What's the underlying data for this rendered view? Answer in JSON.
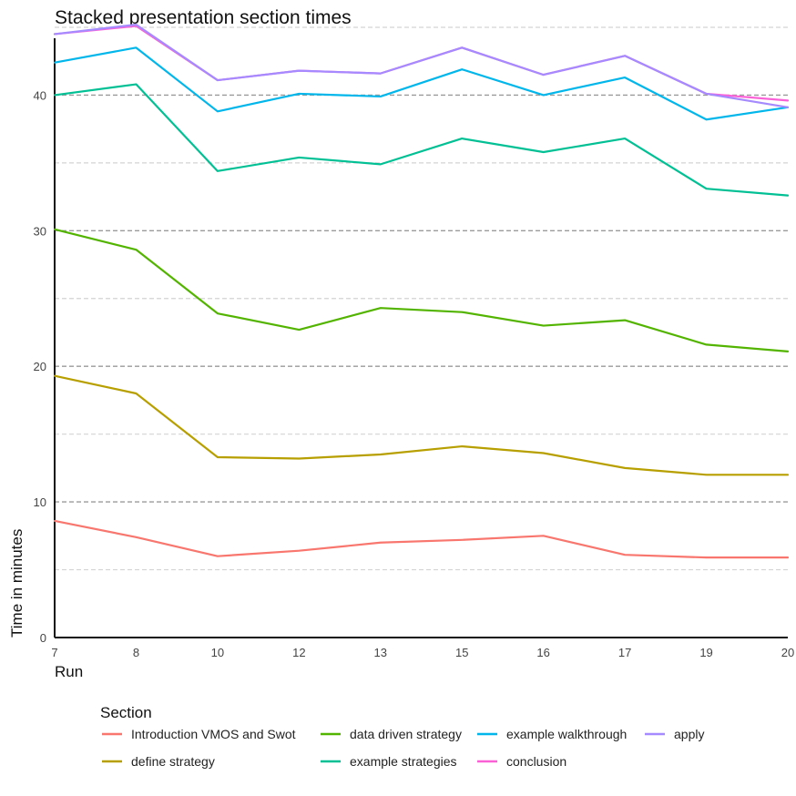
{
  "chart_data": {
    "type": "line",
    "title": "Stacked presentation section times",
    "xlabel": "Run",
    "ylabel": "Time in minutes",
    "categories": [
      "7",
      "8",
      "10",
      "12",
      "13",
      "15",
      "16",
      "17",
      "19",
      "20"
    ],
    "ylim": [
      0,
      45
    ],
    "y_ticks": [
      0,
      10,
      20,
      30,
      40
    ],
    "grid": true,
    "legend": {
      "title": "Section",
      "position": "bottom"
    },
    "series": [
      {
        "name": "Introduction VMOS and Swot",
        "color": "#F8766D",
        "values": [
          8.6,
          7.4,
          6.0,
          6.4,
          7.0,
          7.2,
          7.5,
          6.1,
          5.9,
          5.9
        ]
      },
      {
        "name": "define strategy",
        "color": "#B79F00",
        "values": [
          19.3,
          18.0,
          13.3,
          13.2,
          13.5,
          14.1,
          13.6,
          12.5,
          12.0,
          12.0
        ]
      },
      {
        "name": "data driven strategy",
        "color": "#53B400",
        "values": [
          30.1,
          28.6,
          23.9,
          22.7,
          24.3,
          24.0,
          23.0,
          23.4,
          21.6,
          21.1
        ]
      },
      {
        "name": "example strategies",
        "color": "#00C094",
        "values": [
          40.0,
          40.8,
          34.4,
          35.4,
          34.9,
          36.8,
          35.8,
          36.8,
          33.1,
          32.6
        ]
      },
      {
        "name": "example walkthrough",
        "color": "#00B6EB",
        "values": [
          42.4,
          43.5,
          38.8,
          40.1,
          39.9,
          41.9,
          40.0,
          41.3,
          38.2,
          39.1
        ]
      },
      {
        "name": "conclusion",
        "color": "#FB61D7",
        "values": [
          44.5,
          45.1,
          41.1,
          41.8,
          41.6,
          43.5,
          41.5,
          42.9,
          40.1,
          39.6
        ]
      },
      {
        "name": "apply",
        "color": "#A58AFF",
        "values": [
          44.5,
          45.2,
          41.1,
          41.8,
          41.6,
          43.5,
          41.5,
          42.9,
          40.1,
          39.1
        ]
      }
    ]
  }
}
